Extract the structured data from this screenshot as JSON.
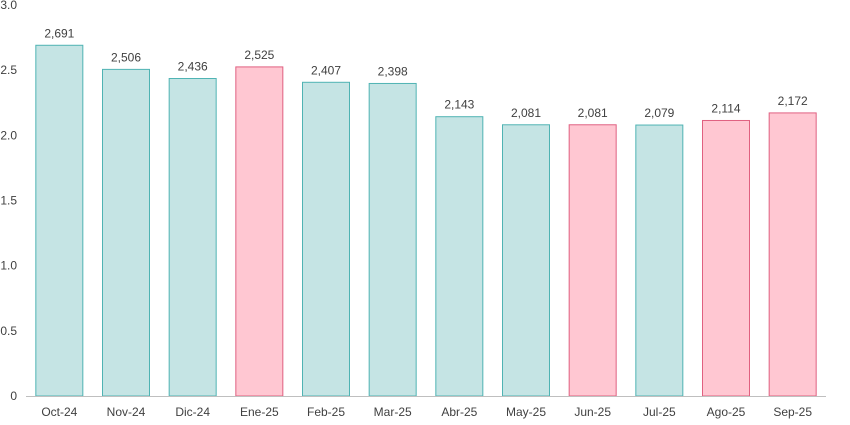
{
  "chart_data": {
    "type": "bar",
    "categories": [
      "Oct-24",
      "Nov-24",
      "Dic-24",
      "Ene-25",
      "Feb-25",
      "Mar-25",
      "Abr-25",
      "May-25",
      "Jun-25",
      "Jul-25",
      "Ago-25",
      "Sep-25"
    ],
    "values": [
      2.691,
      2.506,
      2.436,
      2.525,
      2.407,
      2.398,
      2.143,
      2.081,
      2.081,
      2.079,
      2.114,
      2.172
    ],
    "data_labels": [
      "2,691",
      "2,506",
      "2,436",
      "2,525",
      "2,407",
      "2,398",
      "2,143",
      "2,081",
      "2,081",
      "2,079",
      "2,114",
      "2,172"
    ],
    "highlighted": [
      false,
      false,
      false,
      true,
      false,
      false,
      false,
      false,
      true,
      false,
      true,
      true
    ],
    "y_ticks": [
      "0",
      "0.5",
      "1.0",
      "1.5",
      "2.0",
      "2.5",
      "3.0"
    ],
    "y_tick_values": [
      0,
      0.5,
      1.0,
      1.5,
      2.0,
      2.5,
      3.0
    ],
    "ylim": [
      0,
      3.0
    ],
    "title": "",
    "xlabel": "",
    "ylabel": "",
    "grid": false,
    "legend": "none",
    "colors": {
      "normal_fill": "#c5e4e4",
      "normal_stroke": "#4fb3b3",
      "highlight_fill": "#ffc7d2",
      "highlight_stroke": "#e06080",
      "axis": "#bfbfbf",
      "text": "#404040"
    }
  }
}
